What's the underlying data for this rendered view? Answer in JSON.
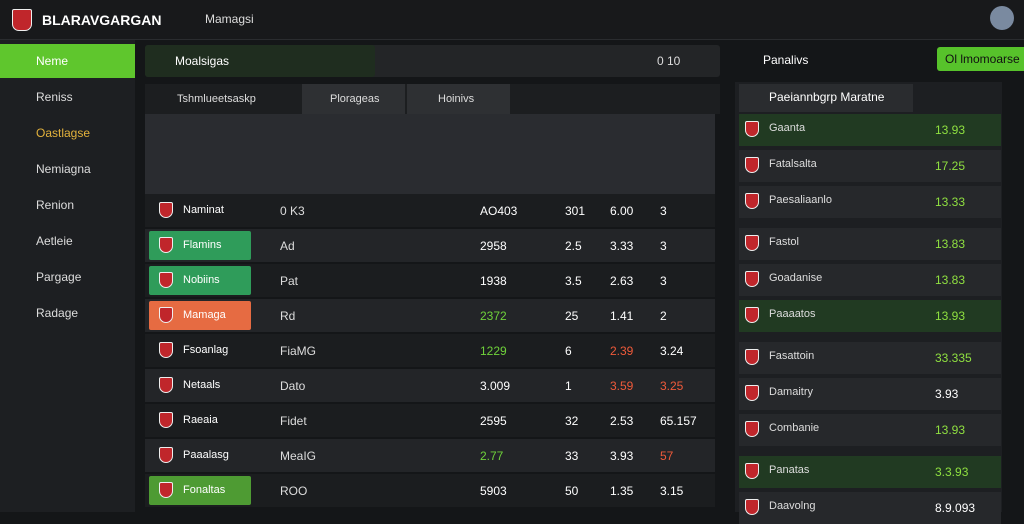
{
  "header": {
    "brand": "BLARAVGARGAN",
    "nav": "Mamagsi"
  },
  "sidebar": {
    "items": [
      "Neme",
      "Reniss",
      "Oastlagse",
      "Nemiagna",
      "Renion",
      "Aetleie",
      "Pargage",
      "Radage"
    ]
  },
  "search": {
    "placeholder": "Moalsigas",
    "count": "0 10"
  },
  "tabs": [
    "Tshmlueetsaskp",
    "Plorageas",
    "Hoinivs"
  ],
  "table": {
    "rows": [
      [
        "Naminat",
        "0 K3",
        "AO403",
        "301",
        "6.00",
        "3"
      ],
      [
        "Flamins",
        "Ad",
        "2958",
        "2.5",
        "3.33",
        "3"
      ],
      [
        "Nobiins",
        "Pat",
        "1938",
        "3.5",
        "2.63",
        "3"
      ],
      [
        "Mamaga",
        "Rd",
        "2372",
        "25",
        "1.41",
        "2"
      ],
      [
        "Fsoanlag",
        "FiaMG",
        "1229",
        "6",
        "2.39",
        "3.24"
      ],
      [
        "Netaals",
        "Dato",
        "3.009",
        "1",
        "3.59",
        "3.25"
      ],
      [
        "Raeaia",
        "Fidet",
        "2595",
        "32",
        "2.53",
        "65.157"
      ],
      [
        "Paaalasg",
        "MeaIG",
        "2.77",
        "33",
        "3.93",
        "57"
      ],
      [
        "Fonaltas",
        "ROO",
        "5903",
        "50",
        "1.35",
        "3.15"
      ]
    ]
  },
  "panel": {
    "title": "Panalivs",
    "button": "Ol lmomoarse",
    "heading": "Paeiannbgrp Maratne",
    "items": [
      [
        "Gaanta",
        "13.93"
      ],
      [
        "Fatalsalta",
        "17.25"
      ],
      [
        "Paesaliaanlo",
        "13.33"
      ],
      [
        "Fastol",
        "13.83"
      ],
      [
        "Goadanise",
        "13.83"
      ],
      [
        "Paaaatos",
        "13.93"
      ],
      [
        "Fasattoin",
        "33.335"
      ],
      [
        "Damaitry",
        "3.93"
      ],
      [
        "Combanie",
        "13.93"
      ],
      [
        "Panatas",
        "3.3.93"
      ],
      [
        "Daavolng",
        "8.9.093"
      ]
    ]
  }
}
